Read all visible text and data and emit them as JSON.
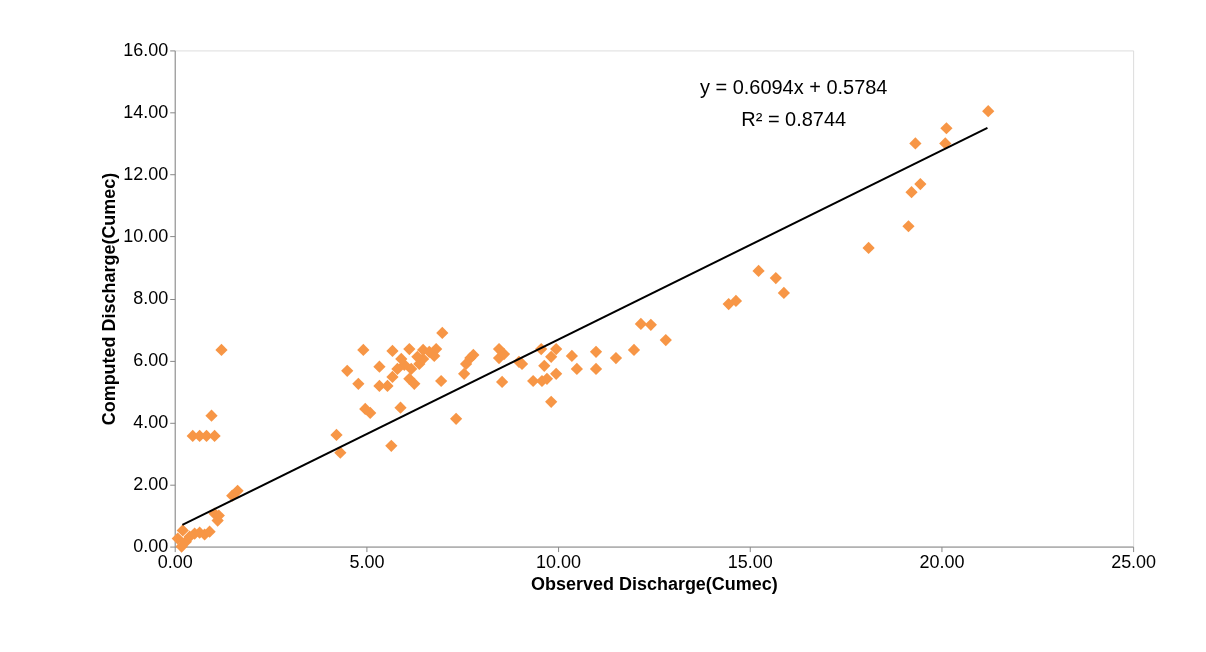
{
  "chart_data": {
    "type": "scatter",
    "xlabel": "Observed Discharge(Cumec)",
    "ylabel": "Computed Discharge(Cumec)",
    "annotations": [
      "y = 0.6094x + 0.5784",
      "R² = 0.8744"
    ],
    "xlim": [
      0,
      25
    ],
    "ylim": [
      0,
      16
    ],
    "xticks": [
      {
        "value": 0,
        "label": "0.00"
      },
      {
        "value": 5,
        "label": "5.00"
      },
      {
        "value": 10,
        "label": "10.00"
      },
      {
        "value": 15,
        "label": "15.00"
      },
      {
        "value": 20,
        "label": "20.00"
      },
      {
        "value": 25,
        "label": "25.00"
      }
    ],
    "yticks": [
      {
        "value": 0,
        "label": "0.00"
      },
      {
        "value": 2,
        "label": "2.00"
      },
      {
        "value": 4,
        "label": "4.00"
      },
      {
        "value": 6,
        "label": "6.00"
      },
      {
        "value": 8,
        "label": "8.00"
      },
      {
        "value": 10,
        "label": "10.00"
      },
      {
        "value": 12,
        "label": "12.00"
      },
      {
        "value": 14,
        "label": "14.00"
      },
      {
        "value": 16,
        "label": "16.00"
      }
    ],
    "grid": false,
    "series": [
      {
        "color": "#f79646",
        "marker": "diamond",
        "x": [
          0.08,
          0.18,
          0.29,
          0.39,
          0.52,
          0.65,
          0.78,
          0.91,
          0.21,
          1.04,
          1.12,
          1.15,
          1.5,
          1.64,
          0.47,
          0.65,
          0.83,
          1.04,
          0.96,
          1.22,
          4.22,
          4.32,
          4.5,
          4.79,
          4.92,
          4.97,
          5.1,
          5.34,
          5.34,
          5.55,
          5.65,
          5.68,
          5.68,
          5.89,
          5.99,
          6.12,
          6.12,
          6.25,
          6.38,
          6.48,
          6.48,
          6.64,
          6.77,
          6.82,
          6.98,
          6.95,
          7.34,
          7.55,
          7.6,
          7.71,
          7.79,
          5.81,
          5.91,
          6.17,
          6.33,
          8.46,
          8.46,
          8.54,
          8.59,
          8.98,
          9.06,
          9.35,
          9.58,
          9.56,
          9.64,
          9.71,
          9.82,
          9.82,
          9.95,
          9.95,
          10.36,
          10.49,
          10.99,
          10.99,
          11.51,
          11.98,
          12.16,
          12.42,
          12.81,
          14.45,
          14.64,
          15.23,
          15.68,
          15.89,
          18.1,
          19.14,
          19.22,
          19.45,
          19.32,
          20.13,
          20.1,
          21.22
        ],
        "values": [
          0.26,
          0.0,
          0.16,
          0.32,
          0.42,
          0.45,
          0.39,
          0.48,
          0.52,
          1.06,
          0.84,
          1.0,
          1.64,
          1.8,
          3.57,
          3.57,
          3.57,
          3.57,
          4.22,
          6.34,
          3.6,
          3.03,
          5.67,
          5.25,
          6.34,
          4.44,
          4.31,
          5.8,
          5.18,
          5.18,
          3.25,
          6.31,
          5.47,
          4.48,
          5.86,
          6.37,
          5.41,
          5.25,
          5.89,
          6.05,
          6.34,
          6.28,
          6.15,
          6.37,
          6.89,
          5.34,
          4.12,
          5.57,
          5.89,
          6.08,
          6.18,
          5.73,
          6.05,
          5.73,
          6.12,
          6.37,
          6.08,
          5.31,
          6.21,
          5.96,
          5.89,
          5.34,
          5.34,
          6.37,
          5.83,
          5.41,
          4.67,
          6.12,
          5.57,
          6.37,
          6.15,
          5.73,
          6.28,
          5.73,
          6.08,
          6.34,
          7.18,
          7.15,
          6.66,
          7.82,
          7.92,
          8.89,
          8.66,
          8.18,
          9.63,
          10.33,
          11.43,
          11.69,
          13.0,
          13.49,
          13.0,
          14.04
        ]
      },
      {
        "type": "line",
        "marker": "none",
        "color": "#000000",
        "x": [
          0.2,
          21.2
        ],
        "values": [
          0.7,
          13.5
        ]
      }
    ]
  }
}
